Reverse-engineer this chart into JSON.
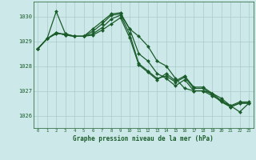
{
  "title": "Graphe pression niveau de la mer (hPa)",
  "background_color": "#cce8e8",
  "grid_color": "#aacccc",
  "line_color": "#1a5c2a",
  "marker_color": "#1a5c2a",
  "xlim": [
    -0.5,
    23.5
  ],
  "ylim": [
    1025.5,
    1030.6
  ],
  "yticks": [
    1026,
    1027,
    1028,
    1029,
    1030
  ],
  "xticks": [
    0,
    1,
    2,
    3,
    4,
    5,
    6,
    7,
    8,
    9,
    10,
    11,
    12,
    13,
    14,
    15,
    16,
    17,
    18,
    19,
    20,
    21,
    22,
    23
  ],
  "series": [
    [
      1028.7,
      1029.1,
      1030.2,
      1029.3,
      1029.2,
      1029.2,
      1029.5,
      1029.8,
      1030.1,
      1030.15,
      1029.5,
      1029.2,
      1028.8,
      1028.2,
      1028.0,
      1027.5,
      1027.1,
      1027.0,
      1027.0,
      1026.9,
      1026.7,
      1026.4,
      1026.15,
      1026.5
    ],
    [
      1028.7,
      1029.1,
      1029.3,
      1029.3,
      1029.2,
      1029.2,
      1029.4,
      1029.7,
      1030.05,
      1030.1,
      1029.5,
      1028.5,
      1028.2,
      1027.7,
      1027.5,
      1027.2,
      1027.45,
      1027.0,
      1027.0,
      1026.8,
      1026.6,
      1026.35,
      1026.5,
      1026.5
    ],
    [
      1028.7,
      1029.1,
      1029.35,
      1029.25,
      1029.2,
      1029.2,
      1029.3,
      1029.55,
      1029.9,
      1030.05,
      1029.3,
      1028.1,
      1027.8,
      1027.5,
      1027.6,
      1027.35,
      1027.55,
      1027.1,
      1027.1,
      1026.85,
      1026.55,
      1026.35,
      1026.5,
      1026.5
    ],
    [
      1028.7,
      1029.1,
      1029.35,
      1029.25,
      1029.2,
      1029.2,
      1029.25,
      1029.45,
      1029.7,
      1029.95,
      1029.15,
      1028.05,
      1027.75,
      1027.45,
      1027.7,
      1027.4,
      1027.6,
      1027.15,
      1027.15,
      1026.9,
      1026.6,
      1026.4,
      1026.55,
      1026.55
    ]
  ]
}
